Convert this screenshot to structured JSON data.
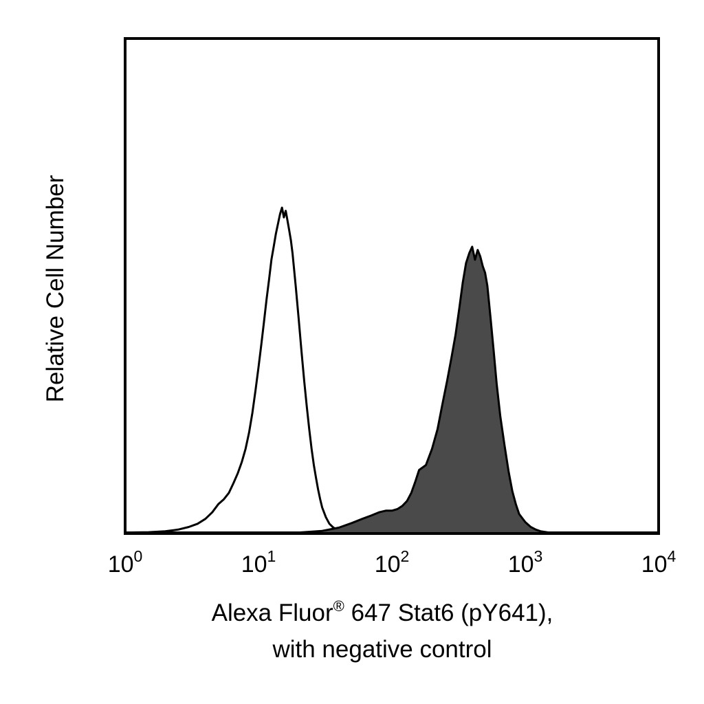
{
  "chart_data": {
    "type": "histogram",
    "title": "",
    "xlabel": {
      "line1_prefix": "Alexa Fluor",
      "line1_mark": "®",
      "line1_suffix": " 647 Stat6 (pY641),",
      "line2": "with negative control"
    },
    "ylabel": "Relative Cell Number",
    "x_scale": "log",
    "xlim": [
      1,
      10000
    ],
    "ylim": [
      0,
      100
    ],
    "x_ticks": [
      {
        "base": "10",
        "exp": "0",
        "value": 1
      },
      {
        "base": "10",
        "exp": "1",
        "value": 10
      },
      {
        "base": "10",
        "exp": "2",
        "value": 100
      },
      {
        "base": "10",
        "exp": "3",
        "value": 1000
      },
      {
        "base": "10",
        "exp": "4",
        "value": 10000
      }
    ],
    "grid": false,
    "legend": "none",
    "series": [
      {
        "style": "outline",
        "color": "#000000",
        "x": [
          1.0,
          1.5,
          2.0,
          2.5,
          3.0,
          3.5,
          4.0,
          4.5,
          5.0,
          5.5,
          6.0,
          6.5,
          7.0,
          7.5,
          8.0,
          8.5,
          9.0,
          9.5,
          10.0,
          10.5,
          11.0,
          11.5,
          12.0,
          12.5,
          13.0,
          13.5,
          14.0,
          14.5,
          15.0,
          15.5,
          16.0,
          16.5,
          17.0,
          17.5,
          18.0,
          19.0,
          20.0,
          21.0,
          22.0,
          23.0,
          24.0,
          25.0,
          26.0,
          27.0,
          28.0,
          29.0,
          30.0,
          32.0,
          34.0,
          36.0,
          38.0,
          40.0,
          45.0,
          50.0,
          60.0,
          80.0,
          100.0,
          150.0,
          200.0
        ],
        "values": [
          0.3,
          0.4,
          0.7,
          1.2,
          2.0,
          3.0,
          4.5,
          6.5,
          9.0,
          10.5,
          12.5,
          15.5,
          18.5,
          22.0,
          26.0,
          31.0,
          37.0,
          44.0,
          51.0,
          58.0,
          65.0,
          72.0,
          78.0,
          84.0,
          88.0,
          92.0,
          95.0,
          98.0,
          100.0,
          97.0,
          99.0,
          96.0,
          93.0,
          90.0,
          86.0,
          76.0,
          66.0,
          56.0,
          47.0,
          39.0,
          32.0,
          26.0,
          21.0,
          17.0,
          13.5,
          10.5,
          8.0,
          5.0,
          3.0,
          2.0,
          1.3,
          0.9,
          0.5,
          0.3,
          0.2,
          0.2,
          0.2,
          0.2,
          0.2
        ]
      },
      {
        "style": "filled",
        "color": "#4a4a4a",
        "x": [
          20.0,
          30.0,
          40.0,
          50.0,
          60.0,
          70.0,
          80.0,
          90.0,
          100.0,
          110.0,
          120.0,
          130.0,
          140.0,
          150.0,
          160.0,
          180.0,
          200.0,
          220.0,
          240.0,
          260.0,
          280.0,
          300.0,
          320.0,
          340.0,
          360.0,
          380.0,
          400.0,
          420.0,
          440.0,
          460.0,
          480.0,
          500.0,
          520.0,
          550.0,
          580.0,
          610.0,
          650.0,
          700.0,
          750.0,
          800.0,
          850.0,
          900.0,
          1000.0,
          1100.0,
          1200.0,
          1300.0,
          1500.0,
          1700.0,
          2000.0,
          2500.0
        ],
        "values": [
          0.3,
          0.8,
          1.8,
          3.2,
          4.5,
          5.5,
          6.5,
          7.0,
          7.0,
          7.5,
          8.5,
          10.0,
          12.5,
          16.0,
          19.5,
          21.0,
          26.0,
          32.0,
          40.0,
          47.0,
          54.0,
          61.0,
          69.0,
          77.0,
          83.0,
          86.0,
          88.0,
          84.0,
          87.0,
          85.0,
          82.0,
          80.0,
          76.0,
          66.0,
          56.0,
          46.0,
          36.0,
          27.0,
          19.0,
          13.0,
          9.0,
          6.0,
          3.5,
          2.0,
          1.2,
          0.7,
          0.3,
          0.2,
          0.2,
          0.1
        ]
      }
    ]
  }
}
